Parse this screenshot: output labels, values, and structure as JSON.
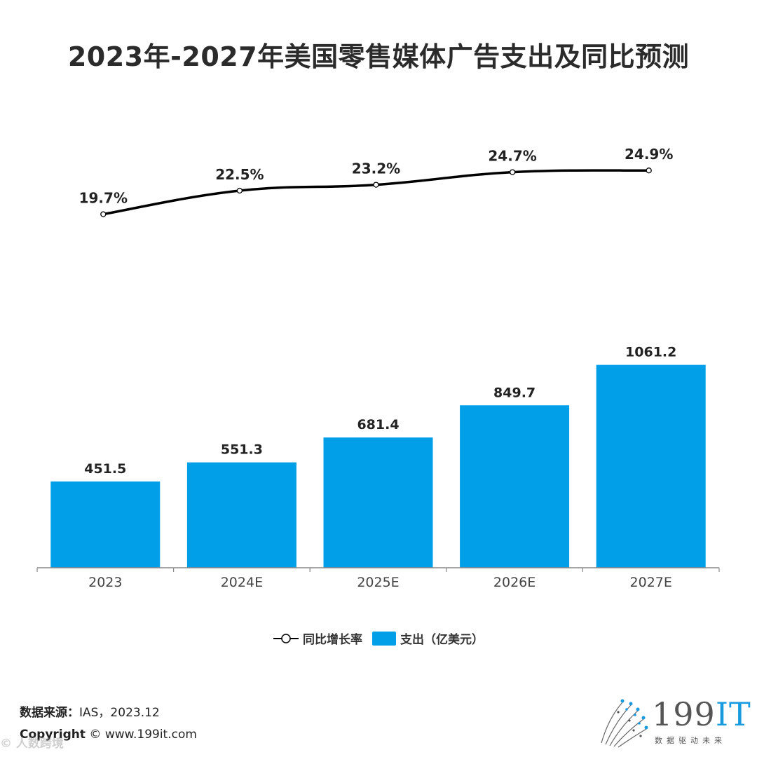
{
  "title": "2023年-2027年美国零售媒体广告支出及同比预测",
  "legend": {
    "growth_label": "同比增长率",
    "spend_label": "支出（亿美元）"
  },
  "source": {
    "label": "数据来源：",
    "value": "IAS，2023.12"
  },
  "copyright": {
    "label": "Copyright",
    "value": " © www.199it.com"
  },
  "watermark": "© 人数跨境",
  "logo": {
    "main": "199",
    "accent": "IT",
    "sub": "数据驱动未来"
  },
  "colors": {
    "bar": "#009fe8",
    "line": "#000000",
    "axis": "#888888"
  },
  "chart_data": {
    "type": "bar",
    "title": "2023年-2027年美国零售媒体广告支出及同比预测",
    "categories": [
      "2023",
      "2024E",
      "2025E",
      "2026E",
      "2027E"
    ],
    "series": [
      {
        "name": "支出（亿美元）",
        "type": "bar",
        "values": [
          451.5,
          551.3,
          681.4,
          849.7,
          1061.2
        ],
        "labels": [
          "451.5",
          "551.3",
          "681.4",
          "849.7",
          "1061.2"
        ]
      },
      {
        "name": "同比增长率",
        "type": "line",
        "values": [
          19.7,
          22.5,
          23.2,
          24.7,
          24.9
        ],
        "labels": [
          "19.7%",
          "22.5%",
          "23.2%",
          "24.7%",
          "24.9%"
        ]
      }
    ],
    "xlabel": "",
    "ylabel": "",
    "ylim": [
      0,
      1100
    ],
    "grid": false,
    "legend_position": "bottom"
  }
}
